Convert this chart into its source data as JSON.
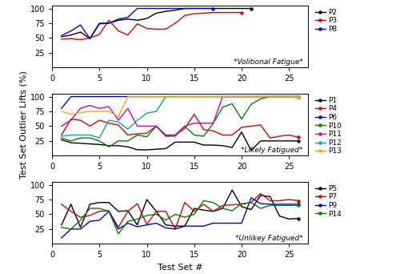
{
  "subplot1_label": "*Volitional Fatigue*",
  "subplot2_label": "*Likely Fatigued*",
  "subplot3_label": "*Unlikey Fatigued*",
  "ylabel": "Test Set Outlier Lifts (%)",
  "xlabel": "Test Set #",
  "subplot1": {
    "P2": {
      "x": [
        1,
        2,
        3,
        4,
        5,
        6,
        7,
        8,
        9,
        10,
        11,
        12,
        13,
        14,
        15,
        16,
        17,
        18,
        19,
        20,
        21
      ],
      "y": [
        52,
        55,
        60,
        49,
        74,
        75,
        80,
        82,
        80,
        83,
        92,
        95,
        97,
        100,
        100,
        100,
        100,
        100,
        100,
        100,
        100
      ]
    },
    "P3": {
      "x": [
        1,
        2,
        3,
        4,
        5,
        6,
        7,
        8,
        9,
        10,
        11,
        12,
        13,
        14,
        15,
        16,
        17,
        18,
        19,
        20
      ],
      "y": [
        48,
        49,
        47,
        50,
        56,
        80,
        62,
        55,
        74,
        66,
        65,
        65,
        75,
        88,
        91,
        92,
        93,
        93,
        93,
        93
      ]
    },
    "P8": {
      "x": [
        1,
        2,
        3,
        4,
        5,
        6,
        7,
        8,
        9,
        10,
        11,
        12,
        13,
        14,
        15,
        16,
        17
      ],
      "y": [
        54,
        62,
        72,
        49,
        75,
        75,
        82,
        85,
        100,
        100,
        100,
        100,
        100,
        100,
        100,
        100,
        100
      ]
    }
  },
  "subplot2": {
    "P1": {
      "x": [
        1,
        2,
        3,
        4,
        5,
        6,
        7,
        8,
        9,
        10,
        11,
        12,
        13,
        14,
        15,
        16,
        17,
        18,
        19,
        20,
        21,
        22,
        23,
        24,
        25,
        26
      ],
      "y": [
        27,
        22,
        21,
        20,
        19,
        17,
        17,
        15,
        10,
        10,
        11,
        12,
        23,
        23,
        23,
        18,
        18,
        17,
        14,
        40,
        9,
        25,
        25,
        25,
        25,
        25
      ]
    },
    "P4": {
      "x": [
        1,
        2,
        3,
        4,
        5,
        6,
        7,
        8,
        9,
        10,
        11,
        12,
        13,
        14,
        15,
        16,
        17,
        18,
        19,
        20,
        21,
        22,
        23,
        24,
        25,
        26
      ],
      "y": [
        35,
        62,
        60,
        50,
        60,
        55,
        52,
        35,
        37,
        38,
        50,
        33,
        35,
        46,
        70,
        44,
        42,
        35,
        35,
        48,
        50,
        52,
        30,
        33,
        35,
        31
      ]
    },
    "P6": {
      "x": [
        1,
        2,
        3,
        4,
        5,
        6,
        7,
        8,
        9,
        10,
        11,
        12,
        13,
        14,
        15,
        16,
        17,
        18,
        19,
        20,
        21,
        22,
        23,
        24,
        25,
        26
      ],
      "y": [
        80,
        100,
        100,
        100,
        100,
        100,
        100,
        100,
        100,
        100,
        100,
        100,
        100,
        100,
        100,
        100,
        100,
        100,
        100,
        100,
        100,
        100,
        100,
        100,
        100,
        100
      ]
    },
    "P10": {
      "x": [
        1,
        2,
        3,
        4,
        5,
        6,
        7,
        8,
        9,
        10,
        11,
        12,
        13,
        14,
        15,
        16,
        17,
        18,
        19,
        20,
        21,
        22,
        23,
        24,
        25,
        26
      ],
      "y": [
        30,
        25,
        30,
        30,
        25,
        15,
        25,
        25,
        35,
        32,
        50,
        35,
        35,
        50,
        35,
        33,
        55,
        82,
        88,
        62,
        87,
        96,
        100,
        100,
        100,
        100
      ]
    },
    "P11": {
      "x": [
        1,
        2,
        3,
        4,
        5,
        6,
        7,
        8,
        9,
        10,
        11,
        12,
        13,
        14,
        15,
        16,
        17,
        18,
        19,
        20,
        21,
        22,
        23,
        24,
        25,
        26
      ],
      "y": [
        50,
        60,
        80,
        85,
        80,
        83,
        60,
        80,
        50,
        50,
        50,
        33,
        33,
        50,
        55,
        55,
        55,
        100,
        100,
        100,
        100,
        100,
        100,
        100,
        100,
        100
      ]
    },
    "P12": {
      "x": [
        1,
        2,
        3,
        4,
        5,
        6,
        7,
        8,
        9,
        10,
        11,
        12,
        13,
        14,
        15,
        16,
        17,
        18,
        19,
        20,
        21,
        22,
        23,
        24,
        25,
        26
      ],
      "y": [
        33,
        35,
        35,
        35,
        30,
        60,
        57,
        45,
        60,
        72,
        75,
        100,
        100,
        100,
        100,
        100,
        100,
        100,
        100,
        100,
        100,
        100,
        100,
        100,
        100,
        100
      ]
    },
    "P13": {
      "x": [
        1,
        2,
        3,
        4,
        5,
        6,
        7,
        8,
        9,
        10,
        11,
        12,
        13,
        14,
        15,
        16,
        17,
        18,
        19,
        20,
        21,
        22,
        23,
        24,
        25,
        26
      ],
      "y": [
        75,
        70,
        73,
        75,
        75,
        75,
        66,
        100,
        100,
        100,
        100,
        100,
        100,
        100,
        100,
        100,
        100,
        100,
        100,
        100,
        100,
        100,
        100,
        100,
        100,
        100
      ]
    }
  },
  "subplot3": {
    "P5": {
      "x": [
        1,
        2,
        3,
        4,
        5,
        6,
        7,
        8,
        9,
        10,
        11,
        12,
        13,
        14,
        15,
        16,
        17,
        18,
        19,
        20,
        21,
        22,
        23,
        24,
        25,
        26
      ],
      "y": [
        32,
        67,
        28,
        67,
        70,
        70,
        55,
        56,
        32,
        75,
        55,
        32,
        30,
        30,
        60,
        57,
        55,
        60,
        91,
        63,
        58,
        82,
        80,
        47,
        42,
        43
      ]
    },
    "P7": {
      "x": [
        1,
        2,
        3,
        4,
        5,
        6,
        7,
        8,
        9,
        10,
        11,
        12,
        13,
        14,
        15,
        16,
        17,
        18,
        19,
        20,
        21,
        22,
        23,
        24,
        25,
        26
      ],
      "y": [
        67,
        55,
        45,
        48,
        55,
        56,
        28,
        55,
        68,
        33,
        55,
        55,
        25,
        70,
        55,
        67,
        55,
        65,
        66,
        67,
        70,
        85,
        73,
        73,
        75,
        73
      ]
    },
    "P9": {
      "x": [
        1,
        2,
        3,
        4,
        5,
        6,
        7,
        8,
        9,
        10,
        11,
        12,
        13,
        14,
        15,
        16,
        17,
        18,
        19,
        20,
        21,
        22,
        23,
        24,
        25,
        26
      ],
      "y": [
        10,
        25,
        25,
        38,
        40,
        55,
        25,
        35,
        29,
        32,
        35,
        27,
        25,
        30,
        30,
        30,
        35,
        35,
        35,
        35,
        78,
        68,
        67,
        67,
        67,
        67
      ]
    },
    "P14": {
      "x": [
        1,
        2,
        3,
        4,
        5,
        6,
        7,
        8,
        9,
        10,
        11,
        12,
        13,
        14,
        15,
        16,
        17,
        18,
        19,
        20,
        21,
        22,
        23,
        24,
        25,
        26
      ],
      "y": [
        28,
        25,
        40,
        60,
        60,
        55,
        17,
        38,
        42,
        48,
        50,
        40,
        50,
        45,
        50,
        73,
        70,
        60,
        56,
        68,
        70,
        60,
        65,
        65,
        65,
        65
      ]
    }
  },
  "colors": {
    "P1": "#000000",
    "P2": "#000000",
    "P3": "#e00000",
    "P4": "#e00000",
    "P5": "#000000",
    "P6": "#0000dd",
    "P7": "#e00000",
    "P8": "#0000dd",
    "P9": "#0000dd",
    "P10": "#008000",
    "P11": "#cc00cc",
    "P12": "#00aaaa",
    "P13": "#ffa500",
    "P14": "#008000"
  }
}
